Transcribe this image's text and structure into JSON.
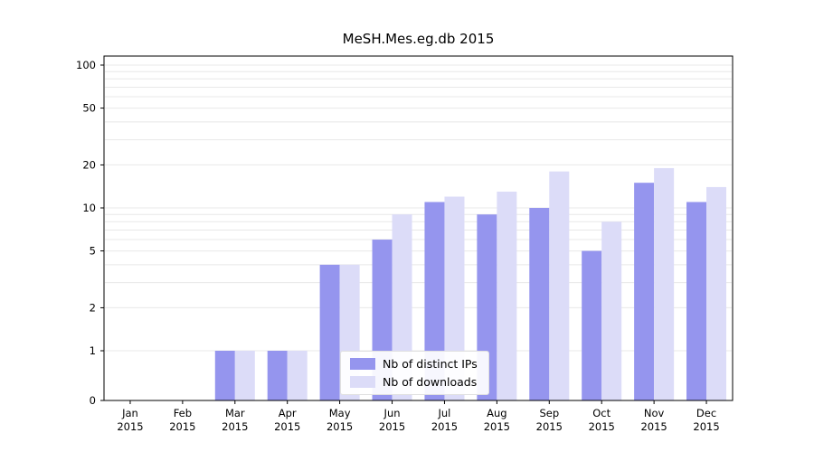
{
  "chart_data": {
    "type": "bar",
    "title": "MeSH.Mes.eg.db 2015",
    "categories": [
      "Jan 2015",
      "Feb 2015",
      "Mar 2015",
      "Apr 2015",
      "May 2015",
      "Jun 2015",
      "Jul 2015",
      "Aug 2015",
      "Sep 2015",
      "Oct 2015",
      "Nov 2015",
      "Dec 2015"
    ],
    "series": [
      {
        "name": "Nb of distinct IPs",
        "color": "#9595ee",
        "values": [
          0,
          0,
          1,
          1,
          4,
          6,
          11,
          9,
          10,
          5,
          15,
          11
        ]
      },
      {
        "name": "Nb of downloads",
        "color": "#dcdcf8",
        "values": [
          0,
          0,
          1,
          1,
          4,
          9,
          12,
          13,
          18,
          8,
          19,
          14
        ]
      }
    ],
    "xlabel": "",
    "ylabel": "",
    "yscale": "log",
    "ylim": [
      0,
      100
    ],
    "yticks": [
      0,
      1,
      2,
      5,
      10,
      20,
      50,
      100
    ],
    "minor_gridlines": [
      3,
      4,
      6,
      7,
      8,
      9,
      30,
      40,
      60,
      70,
      80,
      90
    ],
    "grid": true,
    "legend_position": "bottom-center-inside",
    "axis_color": "#000000",
    "grid_color": "#e8e8e8",
    "background_color": "#ffffff"
  }
}
